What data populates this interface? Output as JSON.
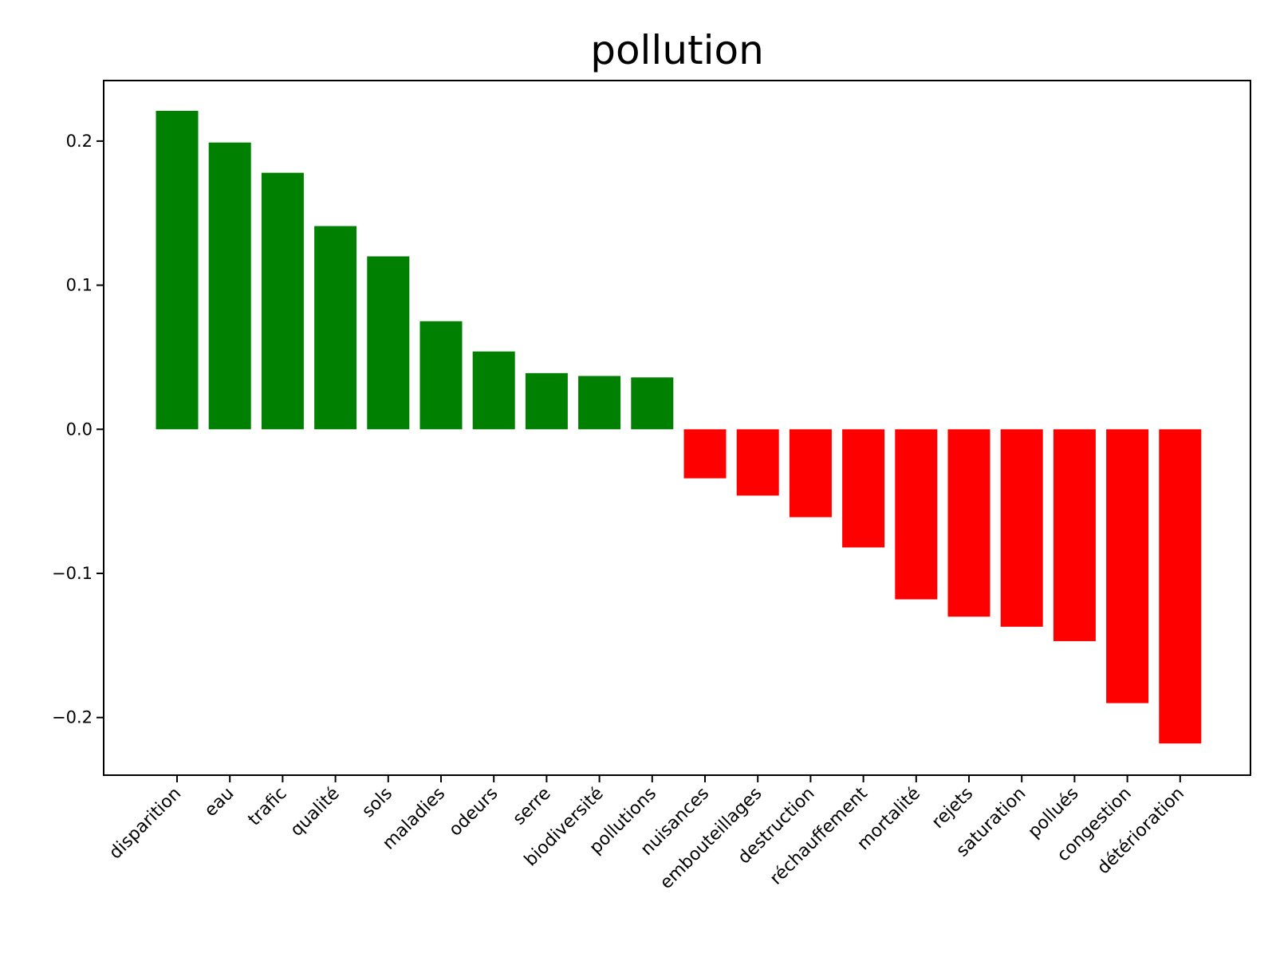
{
  "chart_data": {
    "type": "bar",
    "title": "pollution",
    "xlabel": "",
    "ylabel": "",
    "ylim": [
      -0.24,
      0.242
    ],
    "yticks": [
      -0.2,
      -0.1,
      0.0,
      0.1,
      0.2
    ],
    "ytick_labels": [
      "−0.2",
      "−0.1",
      "0.0",
      "0.1",
      "0.2"
    ],
    "grid": false,
    "legend": "none",
    "positive_color": "#008000",
    "negative_color": "#ff0000",
    "categories": [
      "disparition",
      "eau",
      "trafic",
      "qualité",
      "sols",
      "maladies",
      "odeurs",
      "serre",
      "biodiversité",
      "pollutions",
      "nuisances",
      "embouteillages",
      "destruction",
      "réchauffement",
      "mortalité",
      "rejets",
      "saturation",
      "pollués",
      "congestion",
      "détérioration"
    ],
    "values": [
      0.221,
      0.199,
      0.178,
      0.141,
      0.12,
      0.075,
      0.054,
      0.039,
      0.037,
      0.036,
      -0.034,
      -0.046,
      -0.061,
      -0.082,
      -0.118,
      -0.13,
      -0.137,
      -0.147,
      -0.19,
      -0.218
    ]
  }
}
